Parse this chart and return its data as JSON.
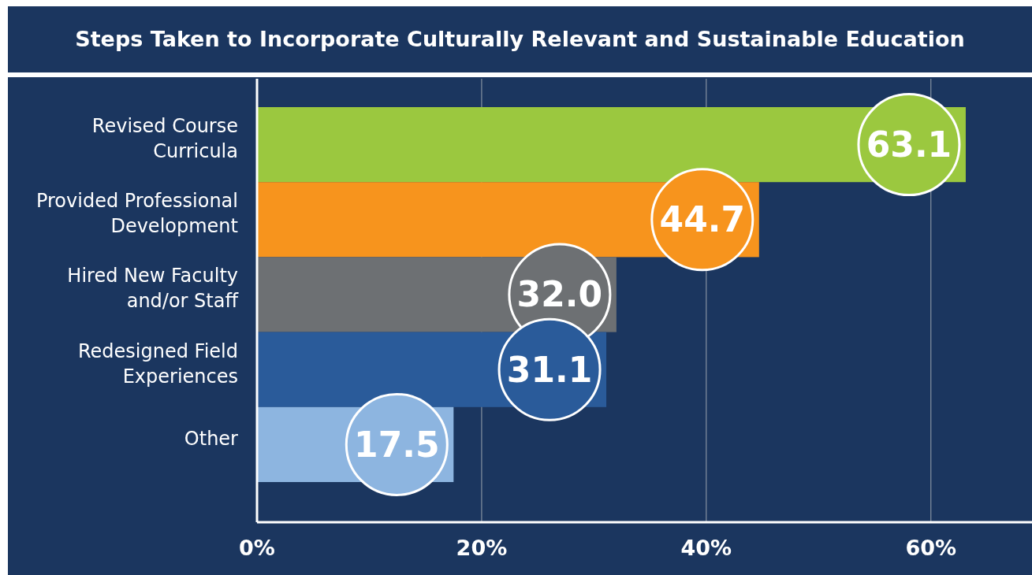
{
  "chart_data": {
    "type": "bar",
    "orientation": "horizontal",
    "title": "Steps Taken to Incorporate Culturally Relevant and Sustainable Education",
    "categories": [
      "Revised Course Curricula",
      "Provided Professional Development",
      "Hired New Faculty and/or Staff",
      "Redesigned Field Experiences",
      "Other"
    ],
    "values": [
      63.1,
      44.7,
      32.0,
      31.1,
      17.5
    ],
    "value_labels": [
      "63.1",
      "44.7",
      "32.0",
      "31.1",
      "17.5"
    ],
    "colors": [
      "#9bc83f",
      "#f7941d",
      "#6d7073",
      "#2a5b9a",
      "#8db5e0"
    ],
    "xlim": [
      0,
      69
    ],
    "xticks": [
      {
        "value": 0,
        "label": "0%"
      },
      {
        "value": 20,
        "label": "20%"
      },
      {
        "value": 40,
        "label": "40%"
      },
      {
        "value": 60,
        "label": "60%"
      }
    ],
    "grid": "x"
  }
}
